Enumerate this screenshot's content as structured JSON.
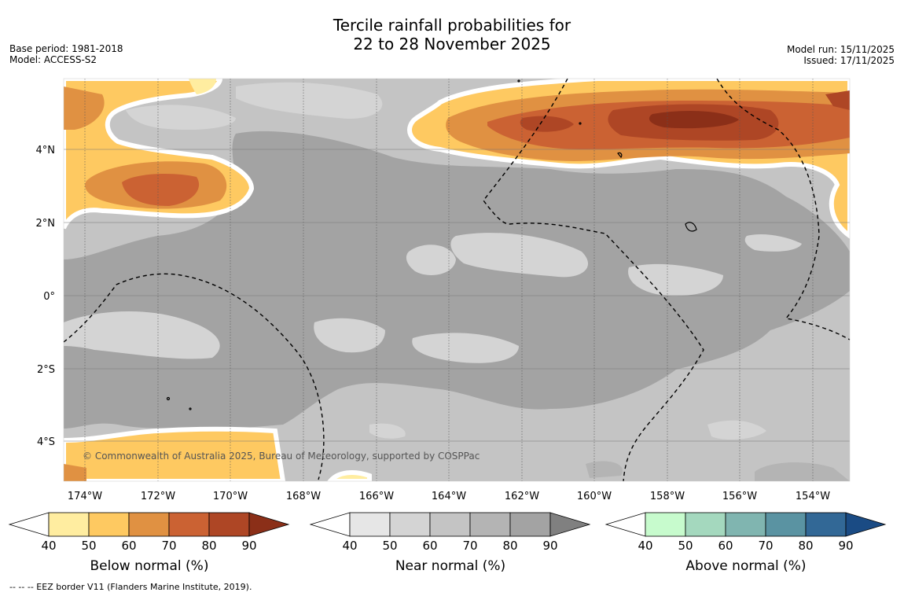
{
  "title": {
    "line1": "Tercile rainfall probabilities for",
    "line2": "22 to 28 November 2025"
  },
  "meta_left": {
    "base_period": "Base period: 1981-2018",
    "model": "Model: ACCESS-S2"
  },
  "meta_right": {
    "model_run": "Model run: 15/11/2025",
    "issued": "Issued: 17/11/2025"
  },
  "map": {
    "copyright": "© Commonwealth of Australia 2025, Bureau of Meteorology, supported by COSPPac",
    "lon_labels": [
      "174°W",
      "172°W",
      "170°W",
      "168°W",
      "166°W",
      "164°W",
      "162°W",
      "160°W",
      "158°W",
      "156°W",
      "154°W"
    ],
    "lat_labels": [
      "4°N",
      "2°N",
      "0°",
      "2°S",
      "4°S"
    ]
  },
  "colorbars": [
    {
      "name": "below",
      "title": "Below normal (%)",
      "ticks": [
        "40",
        "50",
        "60",
        "70",
        "80",
        "90"
      ],
      "colors": [
        "#ffffff",
        "#ffeda0",
        "#fec961",
        "#e09142",
        "#cb6233",
        "#ae4625",
        "#8b2f18"
      ]
    },
    {
      "name": "near",
      "title": "Near normal (%)",
      "ticks": [
        "40",
        "50",
        "60",
        "70",
        "80",
        "90"
      ],
      "colors": [
        "#ffffff",
        "#e6e6e6",
        "#d4d4d4",
        "#c4c4c4",
        "#b4b4b4",
        "#a3a3a3",
        "#808080"
      ]
    },
    {
      "name": "above",
      "title": "Above normal (%)",
      "ticks": [
        "40",
        "50",
        "60",
        "70",
        "80",
        "90"
      ],
      "colors": [
        "#ffffff",
        "#c7fbcd",
        "#a4d8be",
        "#80b5b0",
        "#5a93a2",
        "#326896",
        "#1a4b84"
      ]
    }
  ],
  "footer": "--  --  -- EEZ border V11 (Flanders Marine Institute, 2019)."
}
